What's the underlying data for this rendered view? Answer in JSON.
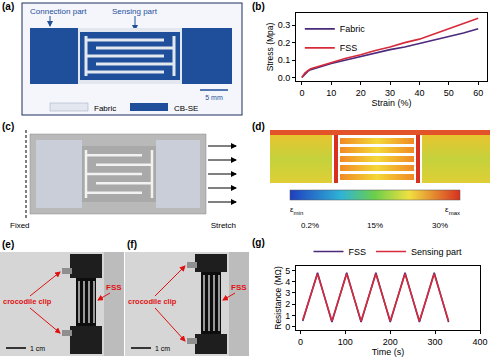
{
  "panels": {
    "a": {
      "label": "(a)",
      "connection_label": "Connection part",
      "sensing_label": "Sensing part",
      "scale_bar": "5 mm",
      "legend": [
        {
          "name": "Fabric",
          "color": "#e3e8f0"
        },
        {
          "name": "CB-SE",
          "color": "#1f4e9b"
        }
      ]
    },
    "c": {
      "label": "(c)",
      "left_text": "Fixed",
      "right_text": "Stretch"
    },
    "d": {
      "label": "(d)",
      "colorbar": {
        "min": {
          "symbol": "ε",
          "sub": "min"
        },
        "max": {
          "symbol": "ε",
          "sub": "max"
        },
        "ticks": [
          "0.2%",
          "15%",
          "30%"
        ]
      }
    },
    "e": {
      "label": "(e)",
      "clip_label": "crocodile clip",
      "sample_label": "FSS",
      "scale_bar": "1 cm"
    },
    "f": {
      "label": "(f)",
      "clip_label": "crocodile clip",
      "sample_label": "FSS",
      "scale_bar": "1 cm"
    }
  },
  "chart_data": [
    {
      "panel": "(b)",
      "type": "line",
      "xlabel": "Strain (%)",
      "ylabel": "Stress (Mpa)",
      "xlim": [
        -2,
        63
      ],
      "ylim": [
        -0.02,
        0.37
      ],
      "xticks": [
        0,
        10,
        20,
        30,
        40,
        50,
        60
      ],
      "yticks": [
        {
          "value": 0,
          "label": "0.0"
        },
        0.1,
        0.2,
        0.3
      ],
      "legend": "top left",
      "x": [
        0,
        1,
        2,
        3,
        5,
        10,
        15,
        20,
        25,
        30,
        35,
        40,
        45,
        50,
        55,
        60
      ],
      "series": [
        {
          "name": "Fabric",
          "color": "#4b2a7b",
          "values": [
            0,
            0.02,
            0.035,
            0.045,
            0.055,
            0.08,
            0.1,
            0.12,
            0.14,
            0.16,
            0.175,
            0.195,
            0.215,
            0.235,
            0.255,
            0.28
          ]
        },
        {
          "name": "FSS",
          "color": "#d62b3a",
          "values": [
            0,
            0.025,
            0.04,
            0.05,
            0.06,
            0.085,
            0.11,
            0.13,
            0.155,
            0.175,
            0.2,
            0.22,
            0.25,
            0.28,
            0.31,
            0.34
          ]
        }
      ]
    },
    {
      "panel": "(g)",
      "type": "line",
      "xlabel": "Time (s)",
      "ylabel": "Resistance (MΩ)",
      "xlim": [
        -10,
        400
      ],
      "ylim": [
        -0.3,
        5.4
      ],
      "xticks": [
        0,
        100,
        200,
        300,
        400
      ],
      "yticks": [
        0,
        1,
        2,
        3,
        4,
        5
      ],
      "legend": "top",
      "x": [
        5,
        38,
        70,
        103,
        135,
        168,
        200,
        233,
        265,
        298,
        330
      ],
      "series": [
        {
          "name": "FSS",
          "color": "#4b2a7b",
          "values": [
            0.5,
            4.8,
            0.4,
            4.8,
            0.4,
            4.8,
            0.4,
            4.8,
            0.4,
            4.8,
            0.4
          ]
        },
        {
          "name": "Sensing part",
          "color": "#d62b3a",
          "values": [
            0.6,
            4.7,
            0.5,
            4.7,
            0.5,
            4.7,
            0.5,
            4.7,
            0.5,
            4.7,
            0.5
          ]
        }
      ]
    }
  ]
}
